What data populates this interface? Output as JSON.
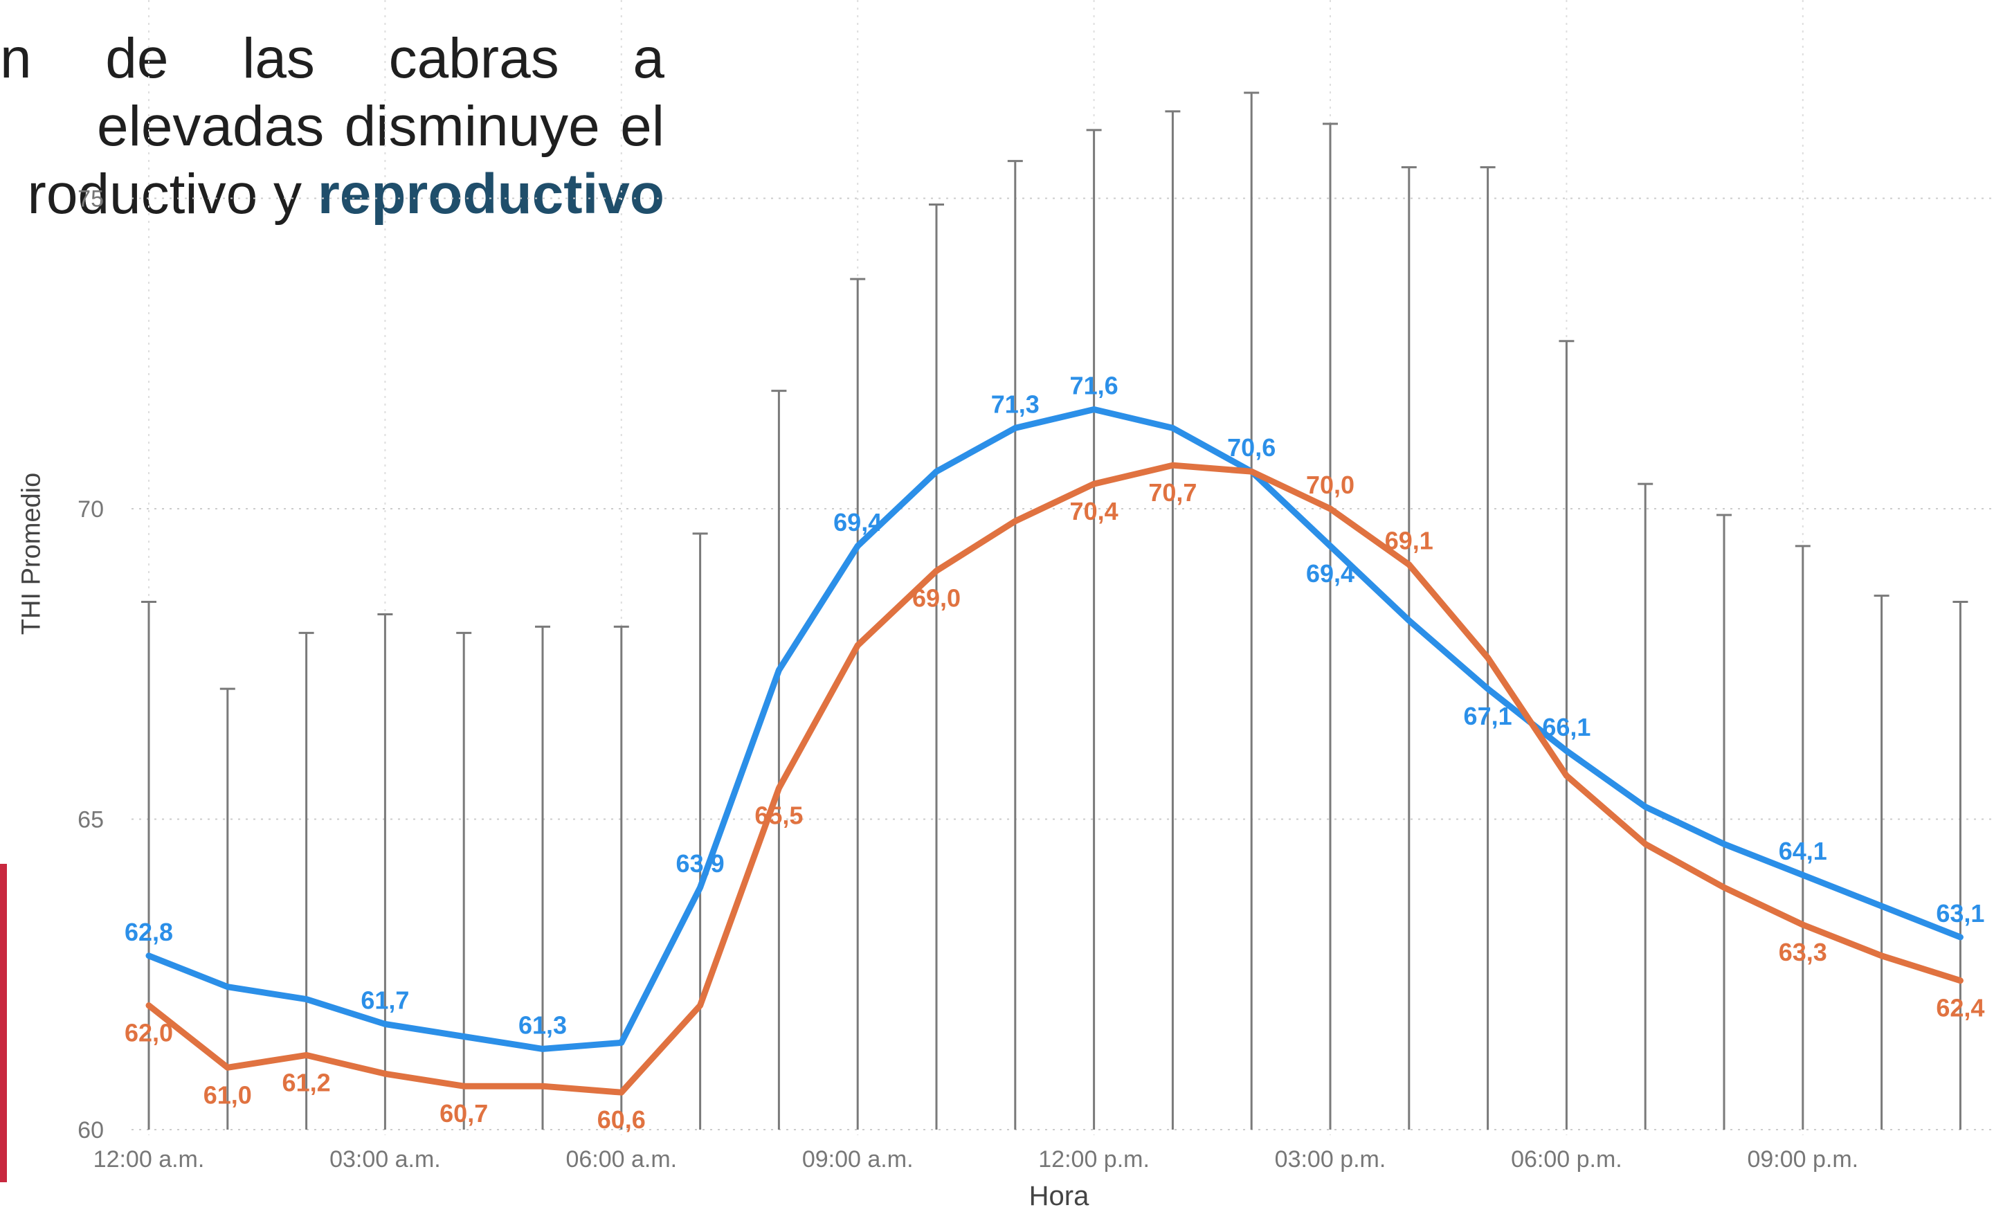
{
  "intro": {
    "line1": [
      "n",
      "de",
      "las",
      "cabras",
      "a"
    ],
    "line2": [
      "elevadas",
      "disminuye",
      "el"
    ],
    "line3_plain": "roductivo y ",
    "line3_bold": "reproductivo"
  },
  "colors": {
    "series_blue": "#2b8fe8",
    "series_orange": "#e07240",
    "error_bar": "#7a7a7a",
    "grid": "#cccccc",
    "accent_bar": "#c8283f"
  },
  "chart_data": {
    "type": "line",
    "xlabel": "Hora",
    "ylabel": "THI Promedio",
    "ylim": [
      60,
      75
    ],
    "yticks": [
      "60",
      "65",
      "70",
      "75"
    ],
    "x_tick_labels": [
      {
        "hour": 0,
        "label": "12:00 a.m."
      },
      {
        "hour": 3,
        "label": "03:00 a.m."
      },
      {
        "hour": 6,
        "label": "06:00 a.m."
      },
      {
        "hour": 9,
        "label": "09:00 a.m."
      },
      {
        "hour": 12,
        "label": "12:00 p.m."
      },
      {
        "hour": 15,
        "label": "03:00 p.m."
      },
      {
        "hour": 18,
        "label": "06:00 p.m."
      },
      {
        "hour": 21,
        "label": "09:00 p.m."
      }
    ],
    "hours": [
      0,
      1,
      2,
      3,
      4,
      5,
      6,
      7,
      8,
      9,
      10,
      11,
      12,
      13,
      14,
      15,
      16,
      17,
      18,
      19,
      20,
      21,
      22,
      23
    ],
    "grid": true,
    "series": [
      {
        "color": "#2b8fe8",
        "values": [
          62.8,
          62.3,
          62.1,
          61.7,
          61.5,
          61.3,
          61.4,
          63.9,
          67.4,
          69.4,
          70.6,
          71.3,
          71.6,
          71.3,
          70.6,
          69.4,
          68.2,
          67.1,
          66.1,
          65.2,
          64.6,
          64.1,
          63.6,
          63.1
        ],
        "labels": [
          "62,8",
          "",
          "",
          "61,7",
          "",
          "61,3",
          "",
          "63,9",
          "",
          "69,4",
          "",
          "71,3",
          "71,6",
          "",
          "70,6",
          "69,4",
          "",
          "67,1",
          "66,1",
          "",
          "",
          "64,1",
          "",
          "63,1"
        ]
      },
      {
        "color": "#e07240",
        "values": [
          62.0,
          61.0,
          61.2,
          60.9,
          60.7,
          60.7,
          60.6,
          62.0,
          65.5,
          67.8,
          69.0,
          69.8,
          70.4,
          70.7,
          70.6,
          70.0,
          69.1,
          67.6,
          65.7,
          64.6,
          63.9,
          63.3,
          62.8,
          62.4
        ],
        "labels": [
          "62,0",
          "61,0",
          "61,2",
          "",
          "60,7",
          "",
          "60,6",
          "",
          "65,5",
          "",
          "69,0",
          "",
          "70,4",
          "70,7",
          "",
          "70,0",
          "69,1",
          "",
          "",
          "",
          "",
          "63,3",
          "",
          "62,4"
        ]
      }
    ],
    "error_bars": [
      {
        "hour": 0,
        "low": 60.0,
        "high": 68.5
      },
      {
        "hour": 1,
        "low": 60.0,
        "high": 67.1
      },
      {
        "hour": 2,
        "low": 60.0,
        "high": 68.0
      },
      {
        "hour": 3,
        "low": 60.0,
        "high": 68.3
      },
      {
        "hour": 4,
        "low": 60.0,
        "high": 68.0
      },
      {
        "hour": 5,
        "low": 60.0,
        "high": 68.1
      },
      {
        "hour": 6,
        "low": 60.0,
        "high": 68.1
      },
      {
        "hour": 7,
        "low": 60.0,
        "high": 69.6
      },
      {
        "hour": 8,
        "low": 60.0,
        "high": 71.9
      },
      {
        "hour": 9,
        "low": 60.0,
        "high": 73.7
      },
      {
        "hour": 10,
        "low": 60.0,
        "high": 74.9
      },
      {
        "hour": 11,
        "low": 60.0,
        "high": 75.6
      },
      {
        "hour": 12,
        "low": 60.0,
        "high": 76.1
      },
      {
        "hour": 13,
        "low": 60.0,
        "high": 76.4
      },
      {
        "hour": 14,
        "low": 60.0,
        "high": 76.7
      },
      {
        "hour": 15,
        "low": 60.0,
        "high": 76.2
      },
      {
        "hour": 16,
        "low": 60.0,
        "high": 75.5
      },
      {
        "hour": 17,
        "low": 60.0,
        "high": 75.5
      },
      {
        "hour": 18,
        "low": 60.0,
        "high": 72.7
      },
      {
        "hour": 19,
        "low": 60.0,
        "high": 70.4
      },
      {
        "hour": 20,
        "low": 60.0,
        "high": 69.9
      },
      {
        "hour": 21,
        "low": 60.0,
        "high": 69.4
      },
      {
        "hour": 22,
        "low": 60.0,
        "high": 68.6
      },
      {
        "hour": 23,
        "low": 60.0,
        "high": 68.5
      }
    ]
  }
}
